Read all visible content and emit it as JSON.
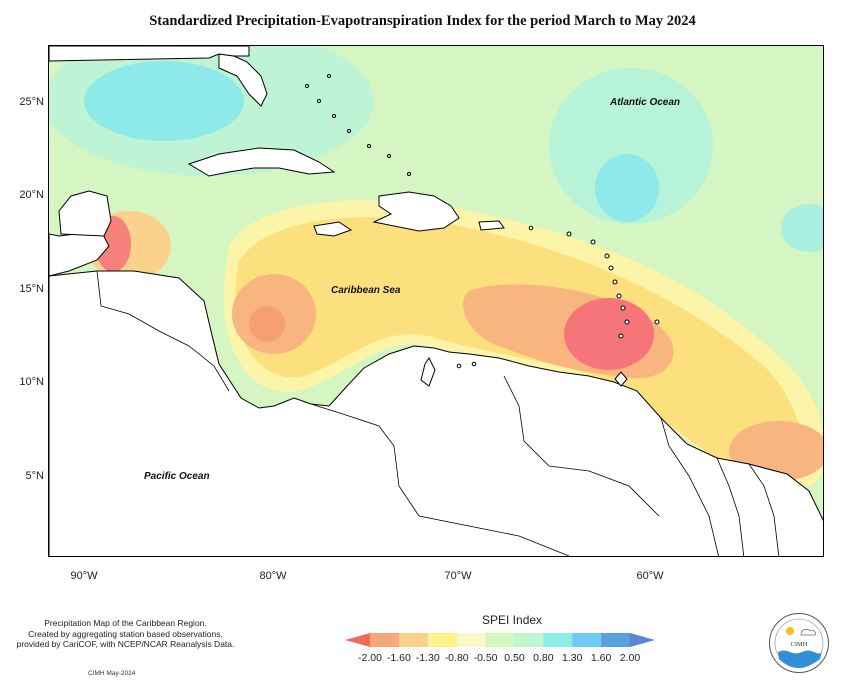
{
  "title": "Standardized Precipitation-Evapotranspiration Index for the period March to May 2024",
  "map": {
    "latitude_labels": [
      "25°N",
      "20°N",
      "15°N",
      "10°N",
      "5°N"
    ],
    "longitude_labels": [
      "90°W",
      "80°W",
      "70°W",
      "60°W"
    ],
    "labels": {
      "atlantic": "Atlantic Ocean",
      "caribbean": "Caribbean Sea",
      "pacific": "Pacific Ocean"
    }
  },
  "credit": {
    "line1": "Precipitation Map of the Caribbean Region.",
    "line2": "Created by aggregating station based observations,",
    "line3": "provided by CariCOF, with NCEP/NCAR Reanalysis Data.",
    "footnote": "CIMH May-2024"
  },
  "legend": {
    "title": "SPEI Index",
    "ticks": [
      "-2.00",
      "-1.60",
      "-1.30",
      "-0.80",
      "-0.50",
      "0.50",
      "0.80",
      "1.30",
      "1.60",
      "2.00"
    ],
    "colors": [
      "#f26c5a",
      "#f7a878",
      "#fbd18b",
      "#fdf28d",
      "#fcf9c8",
      "#d6f6c2",
      "#bdf6cf",
      "#8eeee6",
      "#6dcdf4",
      "#5aa0e0",
      "#5b86d6"
    ]
  },
  "logo": {
    "text": "CIMH"
  }
}
